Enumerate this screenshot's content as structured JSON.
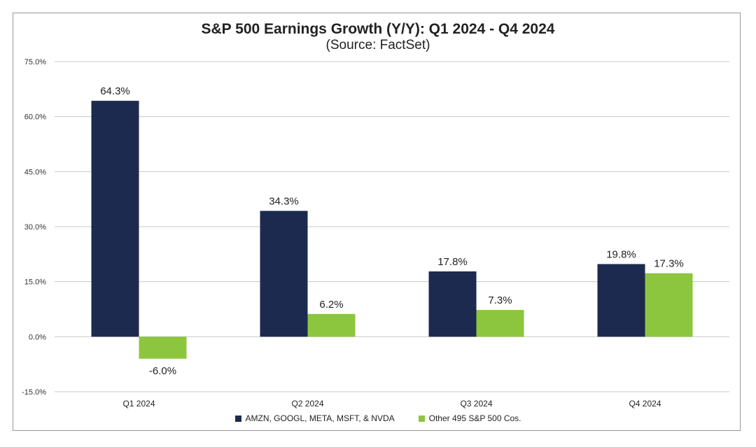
{
  "chart_data": {
    "type": "bar",
    "title": "S&P 500 Earnings Growth (Y/Y): Q1 2024 - Q4 2024",
    "subtitle": "(Source: FactSet)",
    "categories": [
      "Q1 2024",
      "Q2 2024",
      "Q3 2024",
      "Q4 2024"
    ],
    "series": [
      {
        "name": "AMZN, GOOGL, META, MSFT, & NVDA",
        "color": "#1c2a4f",
        "values": [
          64.3,
          34.3,
          17.8,
          19.8
        ],
        "labels": [
          "64.3%",
          "34.3%",
          "17.8%",
          "19.8%"
        ]
      },
      {
        "name": "Other 495 S&P 500 Cos.",
        "color": "#8cc63f",
        "values": [
          -6.0,
          6.2,
          7.3,
          17.3
        ],
        "labels": [
          "-6.0%",
          "6.2%",
          "7.3%",
          "17.3%"
        ]
      }
    ],
    "ylim": [
      -15,
      75
    ],
    "yticks": [
      -15,
      0,
      15,
      30,
      45,
      60,
      75
    ],
    "ytick_labels": [
      "-15.0%",
      "0.0%",
      "15.0%",
      "30.0%",
      "45.0%",
      "60.0%",
      "75.0%"
    ],
    "grid": true,
    "legend": "bottom",
    "xlabel": "",
    "ylabel": ""
  }
}
